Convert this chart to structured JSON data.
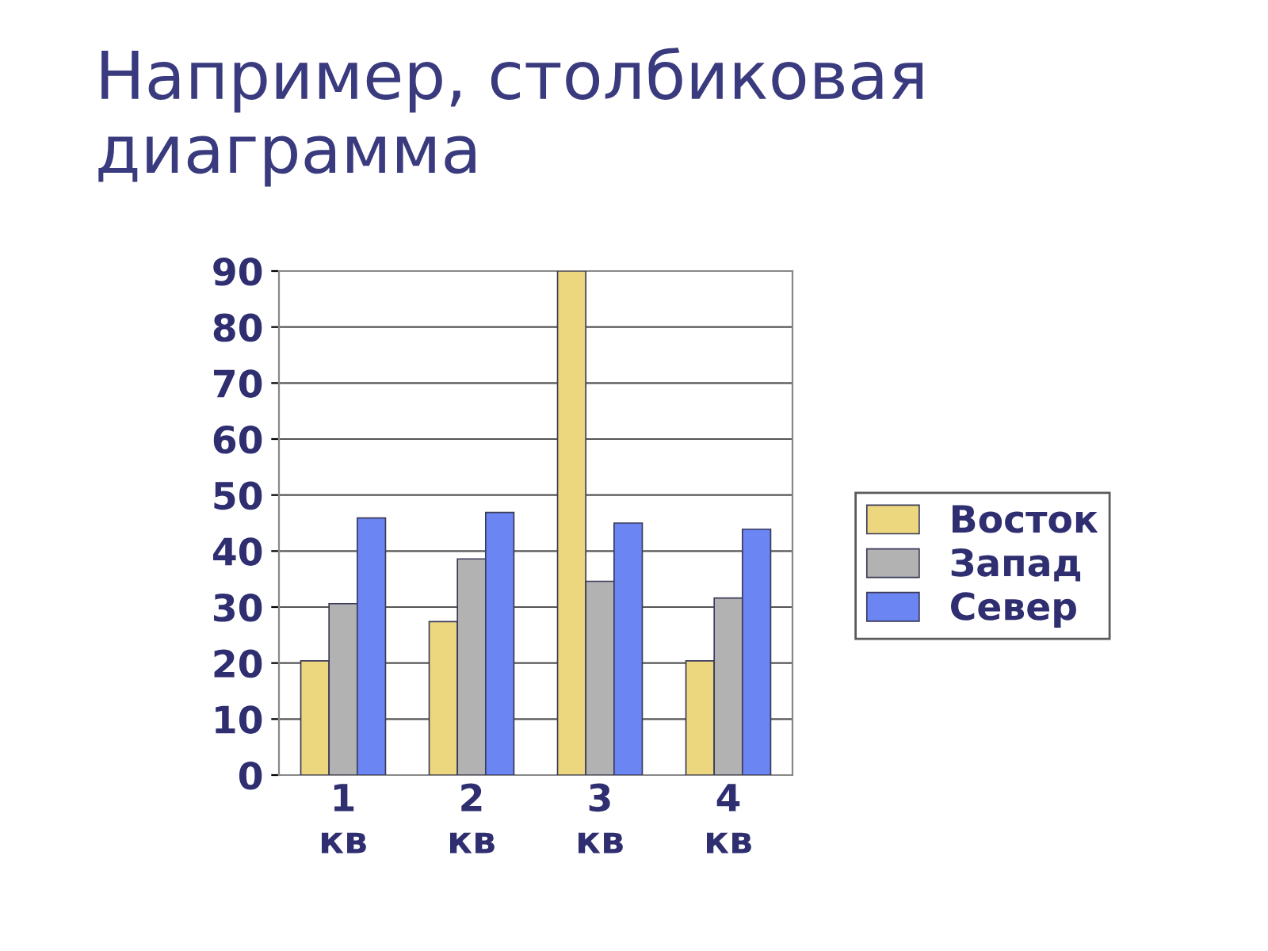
{
  "chart_data": {
    "type": "bar",
    "title": "Например, столбиковая диаграмма",
    "categories": [
      "1 кв",
      "2 кв",
      "3 кв",
      "4 кв"
    ],
    "series": [
      {
        "name": "Восток",
        "color": "#ecd77f",
        "values": [
          20.4,
          27.4,
          90,
          20.4
        ]
      },
      {
        "name": "Запад",
        "color": "#b2b2b2",
        "values": [
          30.6,
          38.6,
          34.6,
          31.6
        ]
      },
      {
        "name": "Север",
        "color": "#6b85f2",
        "values": [
          45.9,
          46.9,
          45,
          43.9
        ]
      }
    ],
    "ylim": [
      0,
      90
    ],
    "yticks": [
      0,
      10,
      20,
      30,
      40,
      50,
      60,
      70,
      80,
      90
    ],
    "grid": "y",
    "legend": "right"
  }
}
